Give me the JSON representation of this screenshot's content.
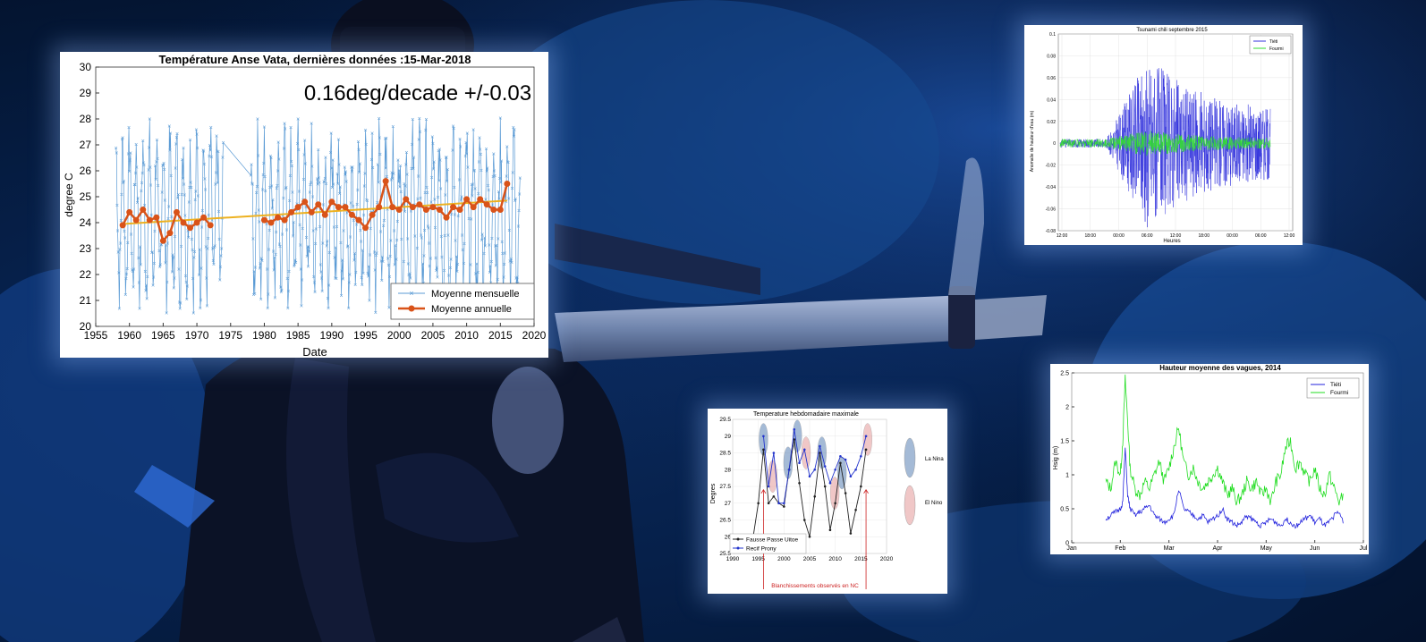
{
  "background": {
    "description_icons": [
      "diver",
      "instrument-tube",
      "coral-reef"
    ],
    "colors": {
      "water": "#0a3a8a",
      "deep": "#031433",
      "reef": "#1a5bb0"
    }
  },
  "chart_data": [
    {
      "id": "anse_vata",
      "type": "line",
      "title": "Température Anse Vata, dernières données :15-Mar-2018",
      "annotation": "0.16deg/decade +/-0.03",
      "xlabel": "Date",
      "ylabel": "degree C",
      "xlim": [
        1955,
        2020
      ],
      "ylim": [
        20,
        30
      ],
      "xticks": [
        "1955",
        "1960",
        "1965",
        "1970",
        "1975",
        "1980",
        "1985",
        "1990",
        "1995",
        "2000",
        "2005",
        "2010",
        "2015",
        "2020"
      ],
      "yticks": [
        "20",
        "21",
        "22",
        "23",
        "24",
        "25",
        "26",
        "27",
        "28",
        "29",
        "30"
      ],
      "legend": [
        "Moyenne mensuelle",
        "Moyenne annuelle"
      ],
      "legend_position": "bottom-right",
      "colors": {
        "monthly": "#5b9bd5",
        "annual": "#d95319",
        "trend": "#edb120"
      },
      "series": [
        {
          "name": "Moyenne annuelle",
          "x": [
            1959,
            1960,
            1961,
            1962,
            1963,
            1964,
            1965,
            1966,
            1967,
            1968,
            1969,
            1970,
            1971,
            1972,
            1980,
            1981,
            1982,
            1983,
            1984,
            1985,
            1986,
            1987,
            1988,
            1989,
            1990,
            1991,
            1992,
            1993,
            1994,
            1995,
            1996,
            1997,
            1998,
            1999,
            2000,
            2001,
            2002,
            2003,
            2004,
            2005,
            2006,
            2007,
            2008,
            2009,
            2010,
            2011,
            2012,
            2013,
            2014,
            2015,
            2016
          ],
          "y": [
            23.9,
            24.4,
            24.1,
            24.5,
            24.1,
            24.2,
            23.3,
            23.6,
            24.4,
            24.0,
            23.8,
            24.0,
            24.2,
            23.9,
            24.1,
            24.0,
            24.2,
            24.1,
            24.4,
            24.6,
            24.8,
            24.4,
            24.7,
            24.3,
            24.8,
            24.6,
            24.6,
            24.3,
            24.1,
            23.8,
            24.3,
            24.6,
            25.6,
            24.6,
            24.5,
            24.9,
            24.6,
            24.7,
            24.5,
            24.6,
            24.5,
            24.2,
            24.6,
            24.5,
            24.9,
            24.6,
            24.9,
            24.7,
            24.5,
            24.5,
            25.5
          ]
        },
        {
          "name": "Moyenne mensuelle",
          "x_range": [
            1958,
            2017
          ],
          "y_range": [
            20.1,
            29.3
          ],
          "points_per_year": 12
        }
      ],
      "trend": {
        "x": [
          1959,
          2016
        ],
        "y": [
          23.95,
          24.85
        ]
      }
    },
    {
      "id": "tsunami",
      "type": "line",
      "title": "Tsunami chili septembre 2015",
      "xlabel": "Heures",
      "ylabel": "Anomalie de hauteur d'eau (m)",
      "ylim": [
        -0.08,
        0.1
      ],
      "yticks": [
        "-0.08",
        "-0.06",
        "-0.04",
        "-0.02",
        "0",
        "0.02",
        "0.04",
        "0.06",
        "0.08",
        "0.1"
      ],
      "xticks": [
        "12:00",
        "18:00",
        "00:00",
        "06:00",
        "12:00",
        "18:00",
        "00:00",
        "06:00",
        "12:00"
      ],
      "legend": [
        "Tiéti",
        "Fourmi"
      ],
      "legend_position": "top-right",
      "colors": {
        "Tiéti": "#3333dd",
        "Fourmi": "#33dd33"
      },
      "series": [
        {
          "name": "Tiéti",
          "envelope": {
            "t_start": 0.0,
            "t_peak": 0.42,
            "peak_amp": 0.08
          }
        },
        {
          "name": "Fourmi",
          "envelope": {
            "t_start": 0.0,
            "t_peak": 0.42,
            "peak_amp": 0.012
          }
        }
      ]
    },
    {
      "id": "temp_hebdo",
      "type": "line",
      "title": "Temperature hebdomadaire maximale",
      "ylabel": "Degres",
      "xlim": [
        1990,
        2020
      ],
      "ylim": [
        25.5,
        29.5
      ],
      "xticks": [
        "1990",
        "1995",
        "2000",
        "2005",
        "2010",
        "2015",
        "2020"
      ],
      "yticks": [
        "25.5",
        "26",
        "26.5",
        "27",
        "27.5",
        "28",
        "28.5",
        "29",
        "29.5"
      ],
      "legend": [
        "Fausse Passe Uitoe",
        "Recif Prony"
      ],
      "legend_position": "bottom-left",
      "side_legend": [
        "La Nina",
        "El Nino"
      ],
      "footer": "Blanchissements observés en NC",
      "colors": {
        "Fausse Passe Uitoe": "#222222",
        "Recif Prony": "#2233cc",
        "La Nina": "#5b82b5",
        "El Nino": "#e59a9a",
        "footer": "#cc2222"
      },
      "series": [
        {
          "name": "Fausse Passe Uitoe",
          "x": [
            1994,
            1995,
            1996,
            1997,
            1998,
            1999,
            2000,
            2001,
            2002,
            2003,
            2004,
            2005,
            2006,
            2007,
            2008,
            2009,
            2010,
            2011,
            2012,
            2013,
            2014,
            2015,
            2016
          ],
          "y": [
            26.0,
            27.0,
            28.6,
            27.0,
            27.2,
            27.0,
            26.9,
            28.0,
            28.9,
            27.6,
            26.5,
            26.0,
            27.2,
            28.5,
            27.5,
            26.2,
            27.0,
            28.2,
            27.3,
            26.1,
            26.8,
            27.5,
            28.6
          ]
        },
        {
          "name": "Recif Prony",
          "x": [
            1996,
            1997,
            1998,
            1999,
            2000,
            2001,
            2002,
            2003,
            2004,
            2005,
            2006,
            2007,
            2008,
            2009,
            2010,
            2011,
            2012,
            2013,
            2014,
            2015,
            2016
          ],
          "y": [
            29.0,
            27.5,
            28.5,
            27.0,
            27.0,
            28.0,
            29.2,
            28.2,
            28.6,
            27.8,
            28.0,
            28.7,
            28.1,
            27.6,
            28.0,
            28.4,
            28.3,
            27.8,
            28.0,
            28.4,
            29.0
          ]
        }
      ],
      "ellipses": [
        {
          "type": "La Nina",
          "x": 1996.0,
          "y": 28.9
        },
        {
          "type": "El Nino",
          "x": 1997.8,
          "y": 27.8
        },
        {
          "type": "La Nina",
          "x": 2000.8,
          "y": 28.2
        },
        {
          "type": "La Nina",
          "x": 2002.6,
          "y": 29.0
        },
        {
          "type": "El Nino",
          "x": 2004.3,
          "y": 28.5
        },
        {
          "type": "La Nina",
          "x": 2007.4,
          "y": 28.5
        },
        {
          "type": "El Nino",
          "x": 2009.9,
          "y": 27.3
        },
        {
          "type": "La Nina",
          "x": 2011.3,
          "y": 27.9
        },
        {
          "type": "El Nino",
          "x": 2016.3,
          "y": 28.9
        }
      ],
      "bleaching_years": [
        1996,
        2016
      ]
    },
    {
      "id": "vagues",
      "type": "line",
      "title": "Hauteur moyenne des vagues, 2014",
      "ylabel": "Hsig (m)",
      "ylim": [
        0,
        2.5
      ],
      "yticks": [
        "0",
        "0.5",
        "1",
        "1.5",
        "2",
        "2.5"
      ],
      "xticks": [
        "Jan",
        "Feb",
        "Mar",
        "Apr",
        "May",
        "Jun",
        "Jul"
      ],
      "legend": [
        "Tiéti",
        "Fourmi"
      ],
      "legend_position": "top-right",
      "colors": {
        "Tiéti": "#2222dd",
        "Fourmi": "#22dd22"
      },
      "series": [
        {
          "name": "Fourmi",
          "x": [
            0.7,
            0.8,
            0.9,
            1.0,
            1.05,
            1.1,
            1.15,
            1.2,
            1.3,
            1.4,
            1.5,
            1.6,
            1.7,
            1.8,
            1.9,
            2.0,
            2.1,
            2.2,
            2.3,
            2.4,
            2.5,
            2.6,
            2.7,
            2.8,
            2.9,
            3.0,
            3.1,
            3.2,
            3.3,
            3.4,
            3.5,
            3.6,
            3.7,
            3.8,
            3.9,
            4.0,
            4.1,
            4.2,
            4.3,
            4.4,
            4.5,
            4.6,
            4.7,
            4.8,
            4.9,
            5.0,
            5.1,
            5.2,
            5.3,
            5.4,
            5.5,
            5.6
          ],
          "y": [
            0.9,
            0.8,
            1.2,
            1.0,
            1.5,
            2.4,
            1.8,
            1.1,
            0.8,
            0.7,
            0.9,
            0.8,
            1.0,
            1.2,
            0.9,
            1.1,
            1.4,
            1.7,
            1.2,
            1.0,
            1.1,
            0.9,
            0.8,
            0.9,
            1.0,
            1.1,
            0.9,
            0.7,
            0.8,
            0.6,
            0.7,
            0.9,
            0.8,
            0.9,
            0.7,
            0.8,
            0.6,
            0.9,
            1.0,
            1.4,
            1.5,
            1.1,
            1.2,
            1.0,
            0.9,
            1.1,
            0.8,
            0.7,
            1.0,
            0.8,
            0.6,
            0.7
          ]
        },
        {
          "name": "Tiéti",
          "x": [
            0.7,
            0.8,
            0.9,
            1.0,
            1.05,
            1.1,
            1.15,
            1.2,
            1.3,
            1.4,
            1.5,
            1.6,
            1.7,
            1.8,
            1.9,
            2.0,
            2.1,
            2.2,
            2.3,
            2.4,
            2.5,
            2.6,
            2.7,
            2.8,
            2.9,
            3.0,
            3.1,
            3.2,
            3.3,
            3.4,
            3.5,
            3.6,
            3.7,
            3.8,
            3.9,
            4.0,
            4.1,
            4.2,
            4.3,
            4.4,
            4.5,
            4.6,
            4.7,
            4.8,
            4.9,
            5.0,
            5.1,
            5.2,
            5.3,
            5.4,
            5.5,
            5.6
          ],
          "y": [
            0.35,
            0.4,
            0.45,
            0.5,
            0.6,
            1.4,
            0.7,
            0.5,
            0.4,
            0.45,
            0.5,
            0.55,
            0.4,
            0.35,
            0.3,
            0.35,
            0.4,
            0.8,
            0.5,
            0.45,
            0.4,
            0.35,
            0.4,
            0.3,
            0.35,
            0.4,
            0.5,
            0.35,
            0.3,
            0.25,
            0.3,
            0.4,
            0.35,
            0.3,
            0.25,
            0.3,
            0.35,
            0.3,
            0.25,
            0.35,
            0.3,
            0.25,
            0.3,
            0.35,
            0.4,
            0.3,
            0.35,
            0.25,
            0.3,
            0.4,
            0.45,
            0.3
          ]
        }
      ]
    }
  ]
}
